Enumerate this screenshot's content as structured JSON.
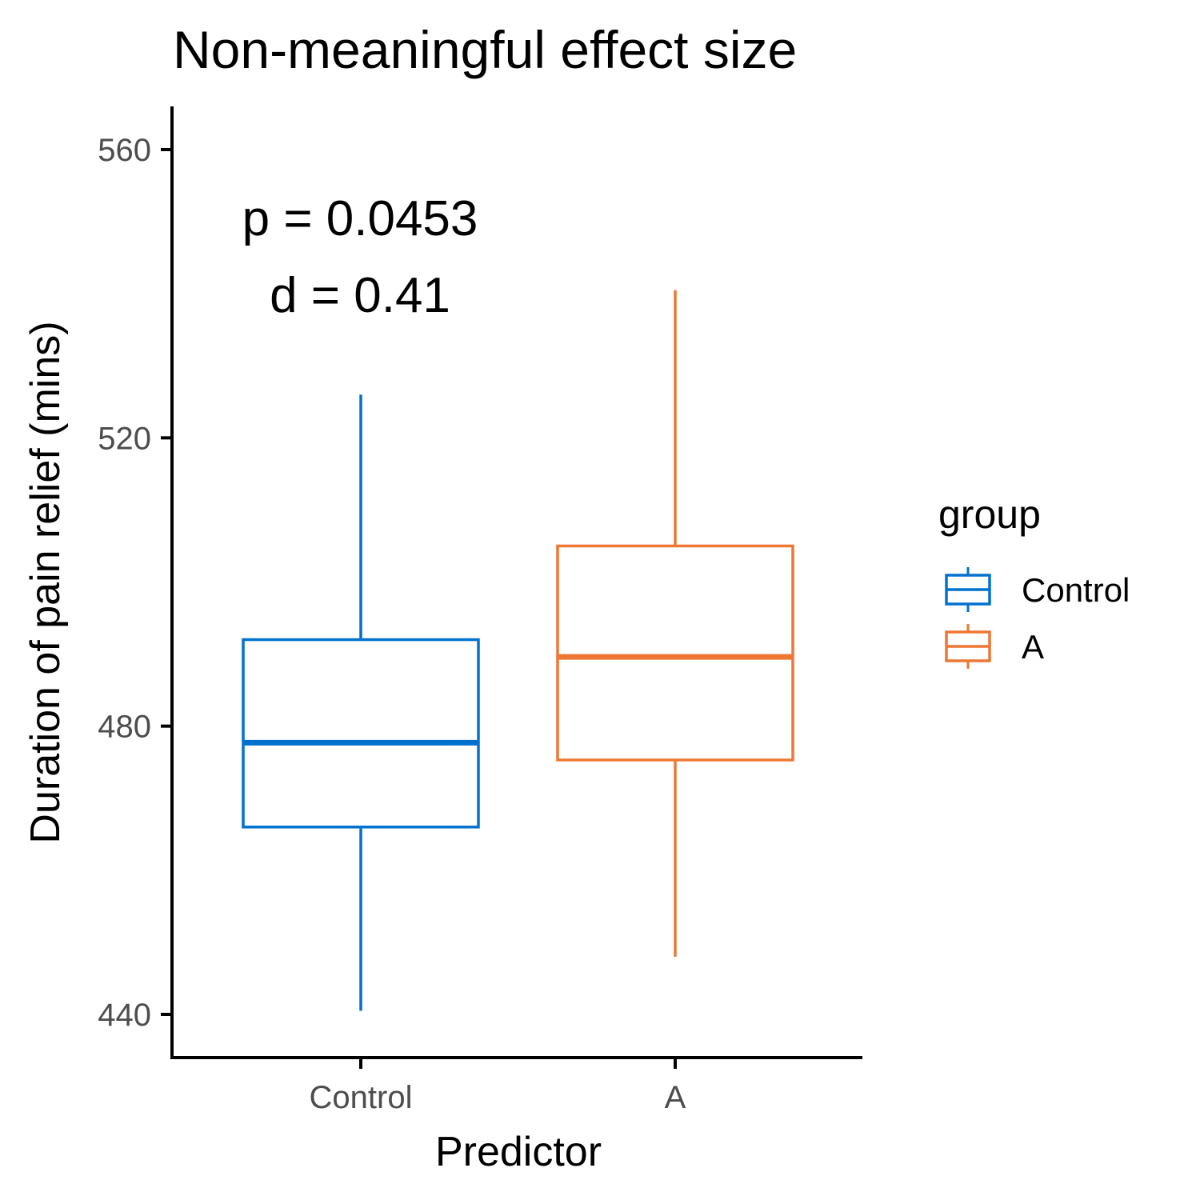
{
  "chart_data": {
    "type": "boxplot",
    "title": "Non-meaningful effect size",
    "xlabel": "Predictor",
    "ylabel": "Duration of pain relief (mins)",
    "categories": [
      "Control",
      "A"
    ],
    "ylim": [
      434,
      566
    ],
    "yticks": [
      440,
      480,
      520,
      560
    ],
    "series": [
      {
        "name": "Control",
        "color": "#0072CE",
        "whisker_low": 440.5,
        "q1": 466,
        "median": 477.7,
        "q3": 492,
        "whisker_high": 526
      },
      {
        "name": "A",
        "color": "#EE7733",
        "whisker_low": 448,
        "q1": 475.3,
        "median": 489.6,
        "q3": 505,
        "whisker_high": 540.5
      }
    ],
    "annotations": [
      "p = 0.0453",
      "d = 0.41"
    ],
    "legend": {
      "title": "group",
      "position": "right",
      "entries": [
        "Control",
        "A"
      ]
    },
    "grid": false
  }
}
